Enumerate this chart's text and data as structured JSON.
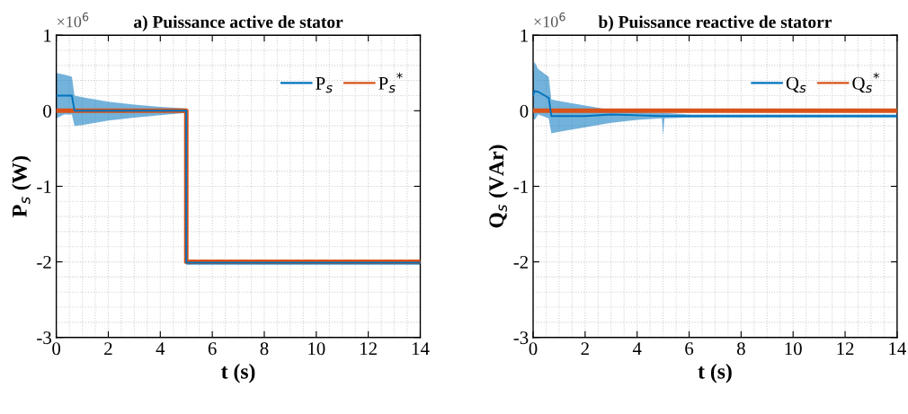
{
  "chart_data": [
    {
      "type": "line",
      "title": "a) Puissance active de stator",
      "xlabel": "t (s)",
      "ylabel": "P$_{s}$ (W)",
      "annotations": [
        "×10$^{6}$"
      ],
      "xlim": [
        0,
        14
      ],
      "ylim": [
        -3,
        1
      ],
      "xticks": [
        0,
        2,
        4,
        6,
        8,
        10,
        12,
        14
      ],
      "yticks": [
        -3,
        -2,
        -1,
        0,
        1
      ],
      "grid": true,
      "legend": "top right",
      "series": [
        {
          "name": "P$_{s}$",
          "color": "#0072bd",
          "x": [
            0,
            0.3,
            0.6,
            0.7,
            1,
            2,
            3,
            4,
            5,
            5,
            6,
            8,
            10,
            12,
            14
          ],
          "values": [
            0.2,
            0.2,
            0.2,
            0,
            0,
            0,
            0,
            0,
            0,
            -2.01,
            -2.01,
            -2.01,
            -2.01,
            -2.01,
            -2.01
          ],
          "lower": [
            -0.1,
            -0.05,
            -0.05,
            -0.2,
            -0.19,
            -0.13,
            -0.09,
            -0.06,
            -0.03,
            -2.04,
            -2.04,
            -2.04,
            -2.04,
            -2.04,
            -2.04
          ],
          "upper": [
            0.5,
            0.48,
            0.45,
            0.2,
            0.18,
            0.12,
            0.08,
            0.05,
            0.03,
            -1.98,
            -1.99,
            -1.99,
            -1.99,
            -1.99,
            -1.99
          ]
        },
        {
          "name": "P$_{s}$$^{*}$",
          "color": "#d95319",
          "x": [
            0,
            5,
            5,
            14
          ],
          "values": [
            0,
            0,
            -2,
            -2
          ]
        }
      ]
    },
    {
      "type": "line",
      "title": "b) Puissance reactive de statorr",
      "xlabel": "t (s)",
      "ylabel": "Q$_{s}$ (VAr)",
      "annotations": [
        "×10$^{6}$"
      ],
      "xlim": [
        0,
        14
      ],
      "ylim": [
        -3,
        1
      ],
      "xticks": [
        0,
        2,
        4,
        6,
        8,
        10,
        12,
        14
      ],
      "yticks": [
        -3,
        -2,
        -1,
        0,
        1
      ],
      "grid": true,
      "legend": "top right",
      "series": [
        {
          "name": "Q$_{s}$",
          "color": "#0072bd",
          "x": [
            0,
            0.05,
            0.2,
            0.6,
            0.7,
            1,
            2,
            3,
            4,
            4.95,
            5,
            5.05,
            6,
            8,
            10,
            12,
            14
          ],
          "values": [
            0.2,
            0.26,
            0.25,
            0.17,
            -0.07,
            -0.07,
            -0.07,
            -0.05,
            -0.06,
            -0.07,
            -0.07,
            -0.07,
            -0.07,
            -0.07,
            -0.07,
            -0.07,
            -0.07
          ],
          "lower": [
            -0.1,
            -0.12,
            -0.05,
            -0.1,
            -0.3,
            -0.28,
            -0.22,
            -0.16,
            -0.12,
            -0.1,
            -0.33,
            -0.1,
            -0.09,
            -0.09,
            -0.09,
            -0.09,
            -0.09
          ],
          "upper": [
            0.5,
            0.65,
            0.55,
            0.45,
            0.15,
            0.13,
            0.07,
            0.01,
            -0.02,
            -0.03,
            -0.03,
            -0.03,
            -0.05,
            -0.05,
            -0.05,
            -0.05,
            -0.05
          ]
        },
        {
          "name": "Q$_{s}$$^{*}$",
          "color": "#d95319",
          "x": [
            0,
            14
          ],
          "values": [
            0,
            0
          ]
        }
      ]
    }
  ]
}
